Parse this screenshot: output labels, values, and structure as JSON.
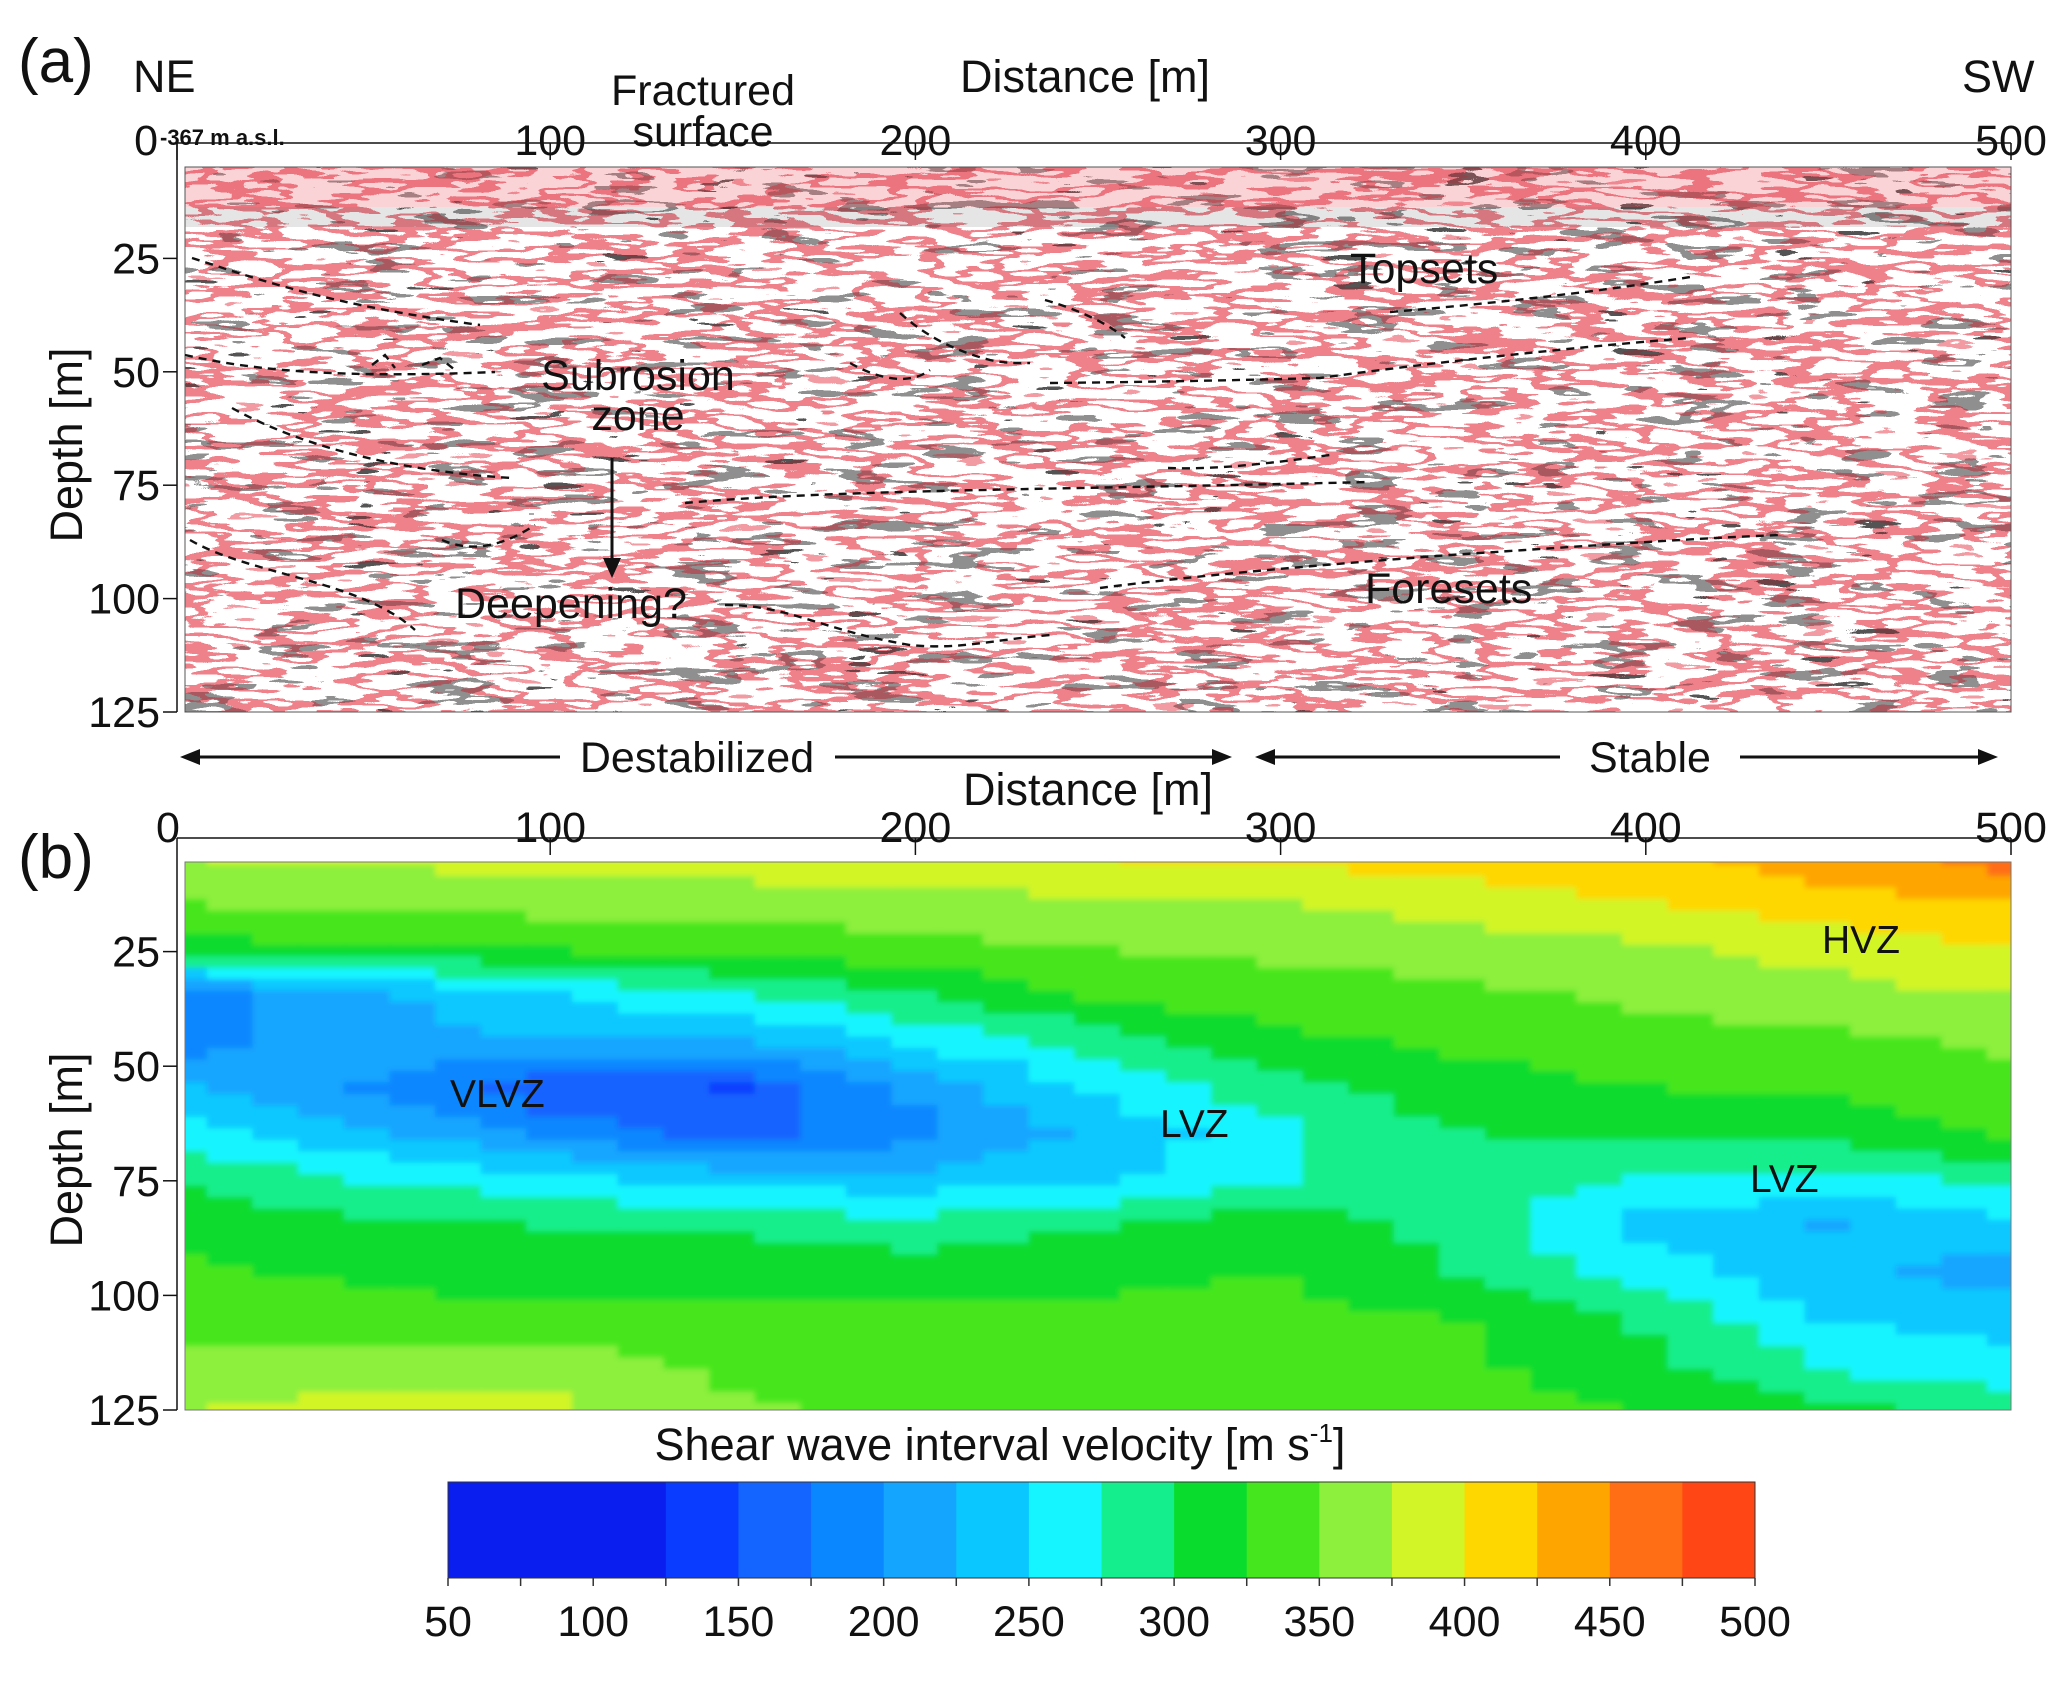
{
  "panel_a": {
    "label": "(a)",
    "ne": "NE",
    "sw": "SW",
    "elevation_note": "-367 m a.s.l.",
    "x_title": "Distance [m]",
    "y_title": "Depth [m]",
    "x_ticks": [
      0,
      100,
      200,
      300,
      400,
      500
    ],
    "y_ticks": [
      0,
      25,
      50,
      75,
      100,
      125
    ],
    "annotations": {
      "fractured_1": "Fractured",
      "fractured_2": "surface",
      "subrosion_1": "Subrosion",
      "subrosion_2": "zone",
      "deepening": "Deepening?",
      "topsets": "Topsets",
      "foresets": "Foresets"
    },
    "colors": {
      "positive": "#e8505a",
      "negative": "#2a2a2a"
    }
  },
  "divider": {
    "destabilized": "Destabilized",
    "stable": "Stable"
  },
  "panel_b": {
    "label": "(b)",
    "x_title": "Distance [m]",
    "y_title": "Depth [m]",
    "x_ticks": [
      0,
      100,
      200,
      300,
      400,
      500
    ],
    "y_ticks": [
      25,
      50,
      75,
      100,
      125
    ],
    "zones": {
      "hvz": "HVZ",
      "vlvz": "VLVZ",
      "lvz_1": "LVZ",
      "lvz_2": "LVZ"
    }
  },
  "colorbar": {
    "title": "Shear wave interval velocity [m s",
    "title_sup": "-1",
    "title_end": "]",
    "tick_labels": [
      50,
      100,
      150,
      200,
      250,
      300,
      350,
      400,
      450,
      500
    ],
    "bands": [
      {
        "from": 50,
        "to": 125,
        "color": "#0a1ef0"
      },
      {
        "from": 125,
        "to": 150,
        "color": "#0a3cff"
      },
      {
        "from": 150,
        "to": 175,
        "color": "#1464ff"
      },
      {
        "from": 175,
        "to": 200,
        "color": "#0a87ff"
      },
      {
        "from": 200,
        "to": 225,
        "color": "#14a5ff"
      },
      {
        "from": 225,
        "to": 250,
        "color": "#0ac8ff"
      },
      {
        "from": 250,
        "to": 275,
        "color": "#14f5ff"
      },
      {
        "from": 275,
        "to": 300,
        "color": "#14ee8c"
      },
      {
        "from": 300,
        "to": 325,
        "color": "#0adc2d"
      },
      {
        "from": 325,
        "to": 350,
        "color": "#46e61e"
      },
      {
        "from": 350,
        "to": 375,
        "color": "#8cf03c"
      },
      {
        "from": 375,
        "to": 400,
        "color": "#d2f528"
      },
      {
        "from": 400,
        "to": 425,
        "color": "#ffd700"
      },
      {
        "from": 425,
        "to": 450,
        "color": "#ffa500"
      },
      {
        "from": 450,
        "to": 475,
        "color": "#ff6e14"
      },
      {
        "from": 475,
        "to": 500,
        "color": "#ff4614"
      }
    ]
  },
  "chart_data": {
    "type": "heatmap",
    "xlabel": "Distance [m]",
    "ylabel": "Depth [m]",
    "xlim": [
      0,
      500
    ],
    "ylim": [
      0,
      125
    ],
    "colorbar_label": "Shear wave interval velocity [m s-1]",
    "color_range": [
      50,
      500
    ],
    "x": [
      0,
      50,
      100,
      150,
      200,
      250,
      300,
      350,
      400,
      450,
      500
    ],
    "depth": [
      5,
      15,
      25,
      35,
      45,
      55,
      65,
      75,
      85,
      95,
      105,
      115,
      125
    ],
    "velocity": [
      [
        375,
        380,
        385,
        390,
        395,
        400,
        405,
        410,
        420,
        440,
        460
      ],
      [
        350,
        355,
        360,
        360,
        365,
        370,
        375,
        385,
        400,
        415,
        425
      ],
      [
        315,
        320,
        325,
        330,
        340,
        350,
        355,
        360,
        370,
        385,
        400
      ],
      [
        185,
        220,
        245,
        275,
        300,
        330,
        340,
        345,
        355,
        365,
        375
      ],
      [
        190,
        215,
        225,
        220,
        255,
        285,
        320,
        330,
        340,
        345,
        355
      ],
      [
        230,
        200,
        155,
        150,
        205,
        255,
        290,
        315,
        325,
        330,
        340
      ],
      [
        260,
        230,
        195,
        165,
        195,
        230,
        270,
        300,
        305,
        310,
        330
      ],
      [
        300,
        275,
        260,
        240,
        235,
        245,
        275,
        285,
        275,
        265,
        285
      ],
      [
        320,
        305,
        300,
        295,
        285,
        300,
        315,
        290,
        240,
        225,
        245
      ],
      [
        330,
        320,
        315,
        320,
        315,
        320,
        325,
        300,
        265,
        230,
        215
      ],
      [
        340,
        335,
        330,
        330,
        330,
        330,
        330,
        325,
        295,
        250,
        240
      ],
      [
        355,
        360,
        365,
        345,
        335,
        330,
        330,
        330,
        310,
        270,
        255
      ],
      [
        375,
        385,
        380,
        355,
        340,
        330,
        330,
        330,
        325,
        305,
        290
      ]
    ]
  }
}
